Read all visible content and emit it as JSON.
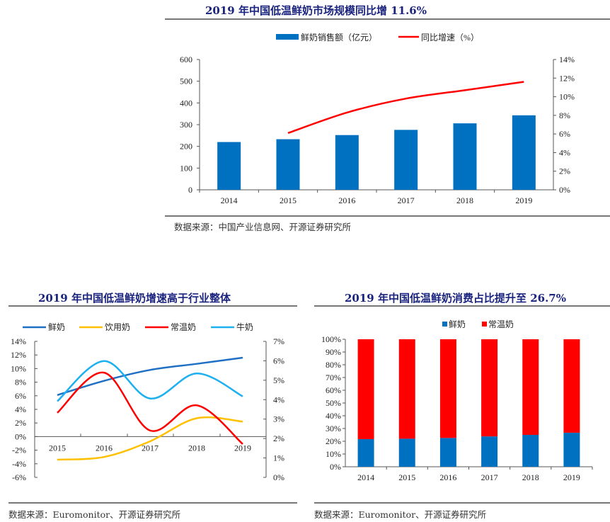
{
  "chart_data": [
    {
      "type": "bar+line",
      "title": "2019 年中国低温鲜奶市场规模同比增 11.6%",
      "categories": [
        "2014",
        "2015",
        "2016",
        "2017",
        "2018",
        "2019"
      ],
      "series": [
        {
          "name": "鲜奶销售额（亿元）",
          "type": "bar",
          "axis": "left",
          "color": "#0070c0",
          "values": [
            220,
            233,
            252,
            276,
            306,
            343
          ]
        },
        {
          "name": "同比增速（%）",
          "type": "line",
          "axis": "right",
          "color": "#ff0000",
          "values": [
            null,
            6.1,
            8.3,
            9.8,
            10.7,
            11.6
          ]
        }
      ],
      "ylim_left": [
        0,
        600
      ],
      "yticks_left": [
        "0",
        "100",
        "200",
        "300",
        "400",
        "500",
        "600"
      ],
      "ylim_right": [
        0,
        14
      ],
      "yticks_right": [
        "0%",
        "2%",
        "4%",
        "6%",
        "8%",
        "10%",
        "12%",
        "14%"
      ],
      "legend": "top",
      "source": "数据来源：中国产业信息网、开源证券研究所"
    },
    {
      "type": "line",
      "title": "2019 年中国低温鲜奶增速高于行业整体",
      "categories": [
        "2015",
        "2016",
        "2017",
        "2018",
        "2019"
      ],
      "series": [
        {
          "name": "鲜奶",
          "axis": "left",
          "color": "#1f6fc5",
          "values": [
            6.1,
            8.2,
            9.8,
            10.7,
            11.6
          ]
        },
        {
          "name": "饮用奶",
          "axis": "left",
          "color": "#ffc000",
          "values": [
            -3.4,
            -3.0,
            -0.7,
            2.7,
            2.2
          ]
        },
        {
          "name": "常温奶",
          "axis": "left",
          "color": "#ff0000",
          "values": [
            3.5,
            9.4,
            0.9,
            4.6,
            -1.1
          ]
        },
        {
          "name": "牛奶",
          "axis": "right",
          "color": "#1cb0f0",
          "values": [
            3.92,
            5.99,
            4.06,
            5.35,
            4.17
          ]
        }
      ],
      "ylim_left": [
        -6,
        14
      ],
      "yticks_left": [
        "-6%",
        "-4%",
        "-2%",
        "0%",
        "2%",
        "4%",
        "6%",
        "8%",
        "10%",
        "12%",
        "14%"
      ],
      "ylim_right": [
        0,
        7
      ],
      "yticks_right": [
        "0%",
        "1%",
        "2%",
        "3%",
        "4%",
        "5%",
        "6%",
        "7%"
      ],
      "legend": "top",
      "source": "数据来源：Euromonitor、开源证券研究所"
    },
    {
      "type": "bar",
      "stacked": true,
      "title": "2019 年中国低温鲜奶消费占比提升至 26.7%",
      "categories": [
        "2014",
        "2015",
        "2016",
        "2017",
        "2018",
        "2019"
      ],
      "series": [
        {
          "name": "鲜奶",
          "color": "#0070c0",
          "values": [
            21.7,
            22.0,
            22.6,
            23.8,
            25.0,
            26.7
          ]
        },
        {
          "name": "常温奶",
          "color": "#ff0000",
          "values": [
            78.3,
            78.0,
            77.4,
            76.2,
            75.0,
            73.3
          ]
        }
      ],
      "ylim": [
        0,
        100
      ],
      "yticks": [
        "0%",
        "10%",
        "20%",
        "30%",
        "40%",
        "50%",
        "60%",
        "70%",
        "80%",
        "90%",
        "100%"
      ],
      "legend": "top",
      "source": "数据来源：Euromonitor、开源证券研究所"
    }
  ]
}
